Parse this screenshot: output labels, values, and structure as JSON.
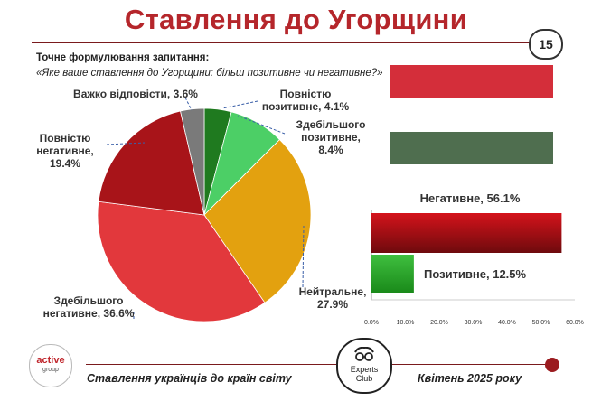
{
  "header": {
    "title": "Ставлення до Угорщини",
    "page_number": "15"
  },
  "question": {
    "label": "Точне формулювання запитання:",
    "text": "«Яке ваше ставлення до Угорщини: більш позитивне чи негативне?»"
  },
  "chart_data": [
    {
      "type": "pie",
      "slices": [
        {
          "name": "Повністю позитивне",
          "label_lines": [
            "Повністю",
            "позитивне, 4.1%"
          ],
          "value": 4.1,
          "color": "#1f7a1f"
        },
        {
          "name": "Здебільшого позитивне",
          "label_lines": [
            "Здебільшого",
            "позитивне,",
            "8.4%"
          ],
          "value": 8.4,
          "color": "#4ccf66"
        },
        {
          "name": "Нейтральне",
          "label_lines": [
            "Нейтральне,",
            "27.9%"
          ],
          "value": 27.9,
          "color": "#e3a10f"
        },
        {
          "name": "Здебільшого негативне",
          "label_lines": [
            "Здебільшого",
            "негативне, 36.6%"
          ],
          "value": 36.6,
          "color": "#e2383c"
        },
        {
          "name": "Повністю негативне",
          "label_lines": [
            "Повністю",
            "негативне,",
            "19.4%"
          ],
          "value": 19.4,
          "color": "#a81419"
        },
        {
          "name": "Важко відповісти",
          "label_lines": [
            "Важко відповісти, 3.6%"
          ],
          "value": 3.6,
          "color": "#7a7a7a"
        }
      ]
    },
    {
      "type": "bar",
      "orientation": "horizontal",
      "categories": [
        "Негативне",
        "Позитивне"
      ],
      "values": [
        56.1,
        12.5
      ],
      "labels": [
        "Негативне, 56.1%",
        "Позитивне, 12.5%"
      ],
      "colors": [
        "#b0151a",
        "#2ea52e"
      ],
      "xlim": [
        0,
        60
      ],
      "ticks": [
        "0.0%",
        "10.0%",
        "20.0%",
        "30.0%",
        "40.0%",
        "50.0%",
        "60.0%"
      ],
      "legend_swatches": [
        {
          "color": "#d42e3a"
        },
        {
          "color": "#4f6e4f"
        }
      ]
    }
  ],
  "footer": {
    "left_text": "Ставлення українців до країн світу",
    "right_text": "Квітень 2025 року",
    "logo_active_top": "active",
    "logo_active_bottom": "group",
    "logo_experts_1": "Experts",
    "logo_experts_2": "Club"
  }
}
